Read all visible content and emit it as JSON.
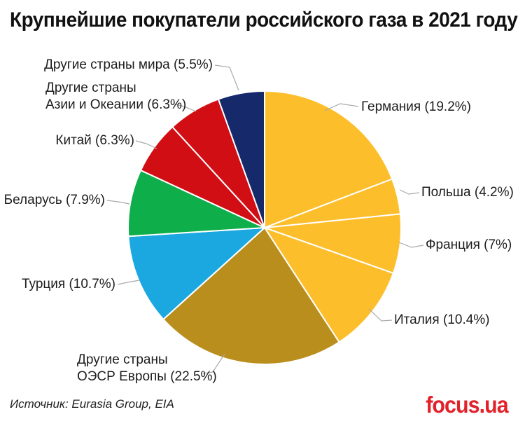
{
  "page": {
    "title": "Крупнейшие покупатели российского газа в 2021 году",
    "source": "Источник: Eurasia Group, EIA",
    "logo": "focus.ua",
    "logo_color": "#e2222b"
  },
  "chart_data": {
    "type": "pie",
    "title": "Крупнейшие покупатели российского газа в 2021 году",
    "start_angle_deg": 0,
    "direction": "clockwise",
    "legend_position": "callout-labels",
    "divider_color": "#ffffff",
    "leader_line_color": "#a9a9a9",
    "slices": [
      {
        "label": "Германия",
        "value": 19.2,
        "display": "Германия (19.2%)",
        "color": "#FDBE2C"
      },
      {
        "label": "Польша",
        "value": 4.2,
        "display": "Польша (4.2%)",
        "color": "#FDBE2C"
      },
      {
        "label": "Франция",
        "value": 7,
        "display": "Франция (7%)",
        "color": "#FDBE2C"
      },
      {
        "label": "Италия",
        "value": 10.4,
        "display": "Италия (10.4%)",
        "color": "#FDBE2C"
      },
      {
        "label": "Другие страны ОЭСР Европы",
        "value": 22.5,
        "display": "Другие страны\nОЭСР Европы (22.5%)",
        "color": "#B98E1D"
      },
      {
        "label": "Турция",
        "value": 10.7,
        "display": "Турция (10.7%)",
        "color": "#1BA8E1"
      },
      {
        "label": "Беларусь",
        "value": 7.9,
        "display": "Беларусь (7.9%)",
        "color": "#0EAE4B"
      },
      {
        "label": "Китай",
        "value": 6.3,
        "display": "Китай (6.3%)",
        "color": "#D20E15"
      },
      {
        "label": "Другие страны Азии и Океании",
        "value": 6.3,
        "display": "Другие страны\nАзии и Океании (6.3%)",
        "color": "#D20E15"
      },
      {
        "label": "Другие страны мира",
        "value": 5.5,
        "display": "Другие страны мира (5.5%)",
        "color": "#15296B"
      }
    ]
  }
}
